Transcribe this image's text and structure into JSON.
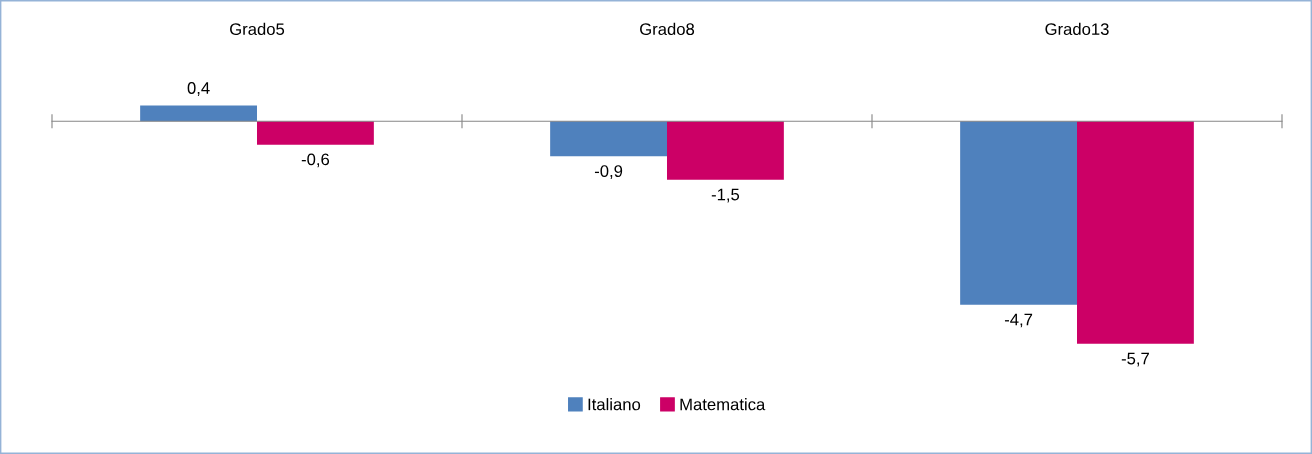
{
  "chart_data": {
    "type": "bar",
    "categories": [
      "Grado5",
      "Grado8",
      "Grado13"
    ],
    "series": [
      {
        "name": "Italiano",
        "color": "#4f81bd",
        "values": [
          0.4,
          -0.9,
          -4.7
        ],
        "value_labels": [
          "0,4",
          "-0,9",
          "-4,7"
        ]
      },
      {
        "name": "Matematica",
        "color": "#cc0066",
        "values": [
          -0.6,
          -1.5,
          -5.7
        ],
        "value_labels": [
          "-0,6",
          "-1,5",
          "-5,7"
        ]
      }
    ],
    "legend": "bottom"
  }
}
